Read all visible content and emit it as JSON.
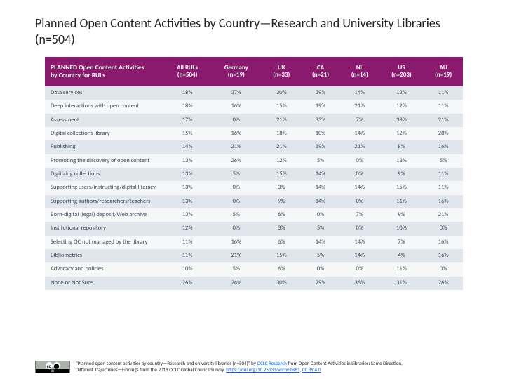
{
  "title": "Planned Open Content Activities by Country—Research and University Libraries (n=504)",
  "table": {
    "header_bg": "#8a1a6e",
    "row_even_bg": "#e0e6eb",
    "row_odd_bg": "#f5f7f9",
    "cell_text_color": "#3f4a52",
    "link_color": "#0b5cd6",
    "columns": [
      "PLANNED Open Content Activities by Country for RULs",
      "All RULs (n=504)",
      "Germany (n=19)",
      "UK (n=33)",
      "CA (n=21)",
      "NL (n=14)",
      "US (n=203)",
      "AU (n=19)"
    ],
    "rows": [
      [
        "Data services",
        "18%",
        "37%",
        "30%",
        "29%",
        "14%",
        "12%",
        "11%"
      ],
      [
        "Deep interactions with open content",
        "18%",
        "16%",
        "15%",
        "19%",
        "21%",
        "12%",
        "11%"
      ],
      [
        "Assessment",
        "17%",
        "0%",
        "21%",
        "33%",
        "7%",
        "33%",
        "21%"
      ],
      [
        "Digital collections library",
        "15%",
        "16%",
        "18%",
        "10%",
        "14%",
        "12%",
        "28%"
      ],
      [
        "Publishing",
        "14%",
        "21%",
        "21%",
        "19%",
        "21%",
        "8%",
        "16%"
      ],
      [
        "Promoting the discovery of open content",
        "13%",
        "26%",
        "12%",
        "5%",
        "0%",
        "13%",
        "5%"
      ],
      [
        "Digitizing collections",
        "13%",
        "5%",
        "15%",
        "14%",
        "0%",
        "9%",
        "11%"
      ],
      [
        "Supporting users/instructing/digital literacy",
        "13%",
        "0%",
        "3%",
        "14%",
        "14%",
        "15%",
        "11%"
      ],
      [
        "Supporting authors/researchers/teachers",
        "13%",
        "0%",
        "9%",
        "14%",
        "0%",
        "11%",
        "16%"
      ],
      [
        "Born-digital (legal) deposit/Web archive",
        "13%",
        "5%",
        "6%",
        "0%",
        "7%",
        "9%",
        "21%"
      ],
      [
        "Institutional repository",
        "12%",
        "0%",
        "3%",
        "5%",
        "0%",
        "10%",
        "0%"
      ],
      [
        "Selecting OC not managed by the library",
        "11%",
        "16%",
        "6%",
        "14%",
        "14%",
        "7%",
        "16%"
      ],
      [
        "Bibliometrics",
        "11%",
        "21%",
        "15%",
        "5%",
        "14%",
        "4%",
        "16%"
      ],
      [
        "Advocacy and policies",
        "10%",
        "5%",
        "6%",
        "0%",
        "0%",
        "11%",
        "0%"
      ],
      [
        "None or Not Sure",
        "26%",
        "26%",
        "30%",
        "29%",
        "36%",
        "31%",
        "26%"
      ]
    ]
  },
  "citation": {
    "line1_a": "\"Planned open content activities by country—Research and university libraries (n=504)\" by ",
    "link1": "OCLC Research",
    "line1_b": " from Open Content Activities in Libraries: Same Direction,",
    "line2_a": "Different Trajectories—Findings from the 2018 OCLC Global Council Survey. ",
    "link2": "https://doi.org/10.25333/verny-bs81",
    "line2_b": ", ",
    "link3": "CC BY 4.0"
  }
}
